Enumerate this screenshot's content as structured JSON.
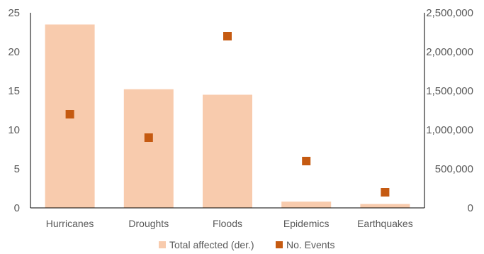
{
  "chart_data": {
    "type": "bar",
    "title": "",
    "xlabel": "",
    "ylabel": "",
    "categories": [
      "Hurricanes",
      "Droughts",
      "Floods",
      "Epidemics",
      "Earthquakes"
    ],
    "series": [
      {
        "name": "Total affected (der.)",
        "type": "bar",
        "axis": "right",
        "color": "#F8CBAD",
        "values": [
          2350000,
          1520000,
          1450000,
          80000,
          50000
        ]
      },
      {
        "name": "No. Events",
        "type": "scatter",
        "marker": "square",
        "axis": "left",
        "color": "#C55A11",
        "values": [
          12,
          9,
          22,
          6,
          2
        ]
      }
    ],
    "y_left": {
      "ylim": [
        0,
        25
      ],
      "ticks": [
        0,
        5,
        10,
        15,
        20,
        25
      ],
      "tick_labels": [
        "0",
        "5",
        "10",
        "15",
        "20",
        "25"
      ]
    },
    "y_right": {
      "ylim": [
        0,
        2500000
      ],
      "ticks": [
        0,
        500000,
        1000000,
        1500000,
        2000000,
        2500000
      ],
      "tick_labels": [
        "0",
        "500,000",
        "1,000,000",
        "1,500,000",
        "2,000,000",
        "2,500,000"
      ]
    },
    "grid": false,
    "legend": {
      "position": "bottom",
      "entries": [
        "Total affected (der.)",
        "No. Events"
      ]
    }
  }
}
